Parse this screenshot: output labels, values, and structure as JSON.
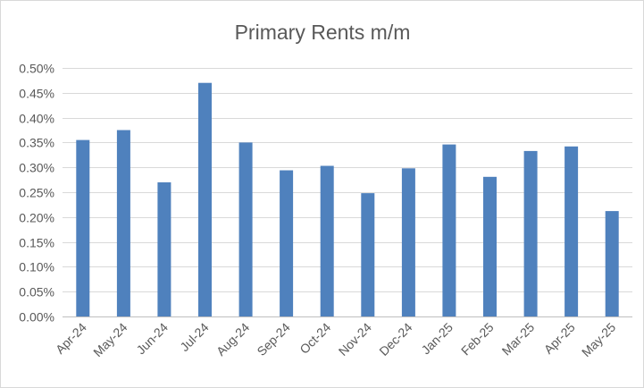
{
  "chart_data": {
    "type": "bar",
    "title": "Primary Rents m/m",
    "xlabel": "",
    "ylabel": "",
    "categories": [
      "Apr-24",
      "May-24",
      "Jun-24",
      "Jul-24",
      "Aug-24",
      "Sep-24",
      "Oct-24",
      "Nov-24",
      "Dec-24",
      "Jan-25",
      "Feb-25",
      "Mar-25",
      "Apr-25",
      "May-25"
    ],
    "series": [
      {
        "values": [
          0.355,
          0.375,
          0.27,
          0.47,
          0.35,
          0.294,
          0.303,
          0.248,
          0.298,
          0.346,
          0.281,
          0.333,
          0.342,
          0.212
        ]
      }
    ],
    "ylim": [
      0,
      0.5
    ],
    "yticks": [
      "0.00%",
      "0.05%",
      "0.10%",
      "0.15%",
      "0.20%",
      "0.25%",
      "0.30%",
      "0.35%",
      "0.40%",
      "0.45%",
      "0.50%"
    ],
    "ytick_values": [
      0,
      0.05,
      0.1,
      0.15,
      0.2,
      0.25,
      0.3,
      0.35,
      0.4,
      0.45,
      0.5
    ],
    "value_unit": "%",
    "grid": true,
    "legend": "none",
    "colors": {
      "bar": "#4F81BD",
      "grid": "#D9D9D9",
      "text": "#595959",
      "axis": "#BFBFBF"
    }
  }
}
